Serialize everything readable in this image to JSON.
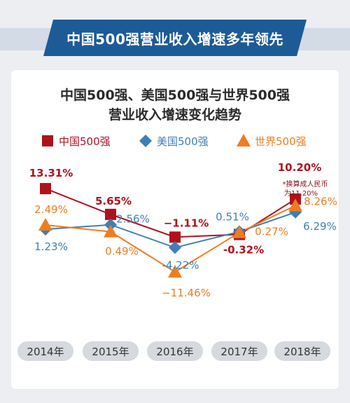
{
  "banner": {
    "text": "中国500强营业收入增速多年领先"
  },
  "chart_data": {
    "type": "line",
    "title": [
      "中国500强、美国500强与世界500强",
      "营业收入增速变化趋势"
    ],
    "categories": [
      "2014年",
      "2015年",
      "2016年",
      "2017年",
      "2018年"
    ],
    "unit": "%",
    "series": [
      {
        "name": "中国500强",
        "marker": "square",
        "color": "#b0121b",
        "values": [
          13.31,
          5.65,
          -1.11,
          -0.32,
          10.2
        ],
        "labels": [
          "13.31%",
          "5.65%",
          "−1.11%",
          "-0.32%",
          "10.20%"
        ]
      },
      {
        "name": "美国500强",
        "marker": "diamond",
        "color": "#3f7fb5",
        "values": [
          1.23,
          2.56,
          -4.22,
          0.51,
          6.29
        ],
        "labels": [
          "1.23%",
          "2.56%",
          "-4.22%",
          "0.51%",
          "6.29%"
        ]
      },
      {
        "name": "世界500强",
        "marker": "triangle",
        "color": "#ee7d21",
        "values": [
          2.49,
          0.49,
          -11.46,
          0.27,
          8.26
        ],
        "labels": [
          "2.49%",
          "0.49%",
          "−11.46%",
          "0.27%",
          "8.26%"
        ]
      }
    ],
    "annotation": [
      "*换算成人民币",
      "为11.20%"
    ],
    "legend_position": "top"
  }
}
